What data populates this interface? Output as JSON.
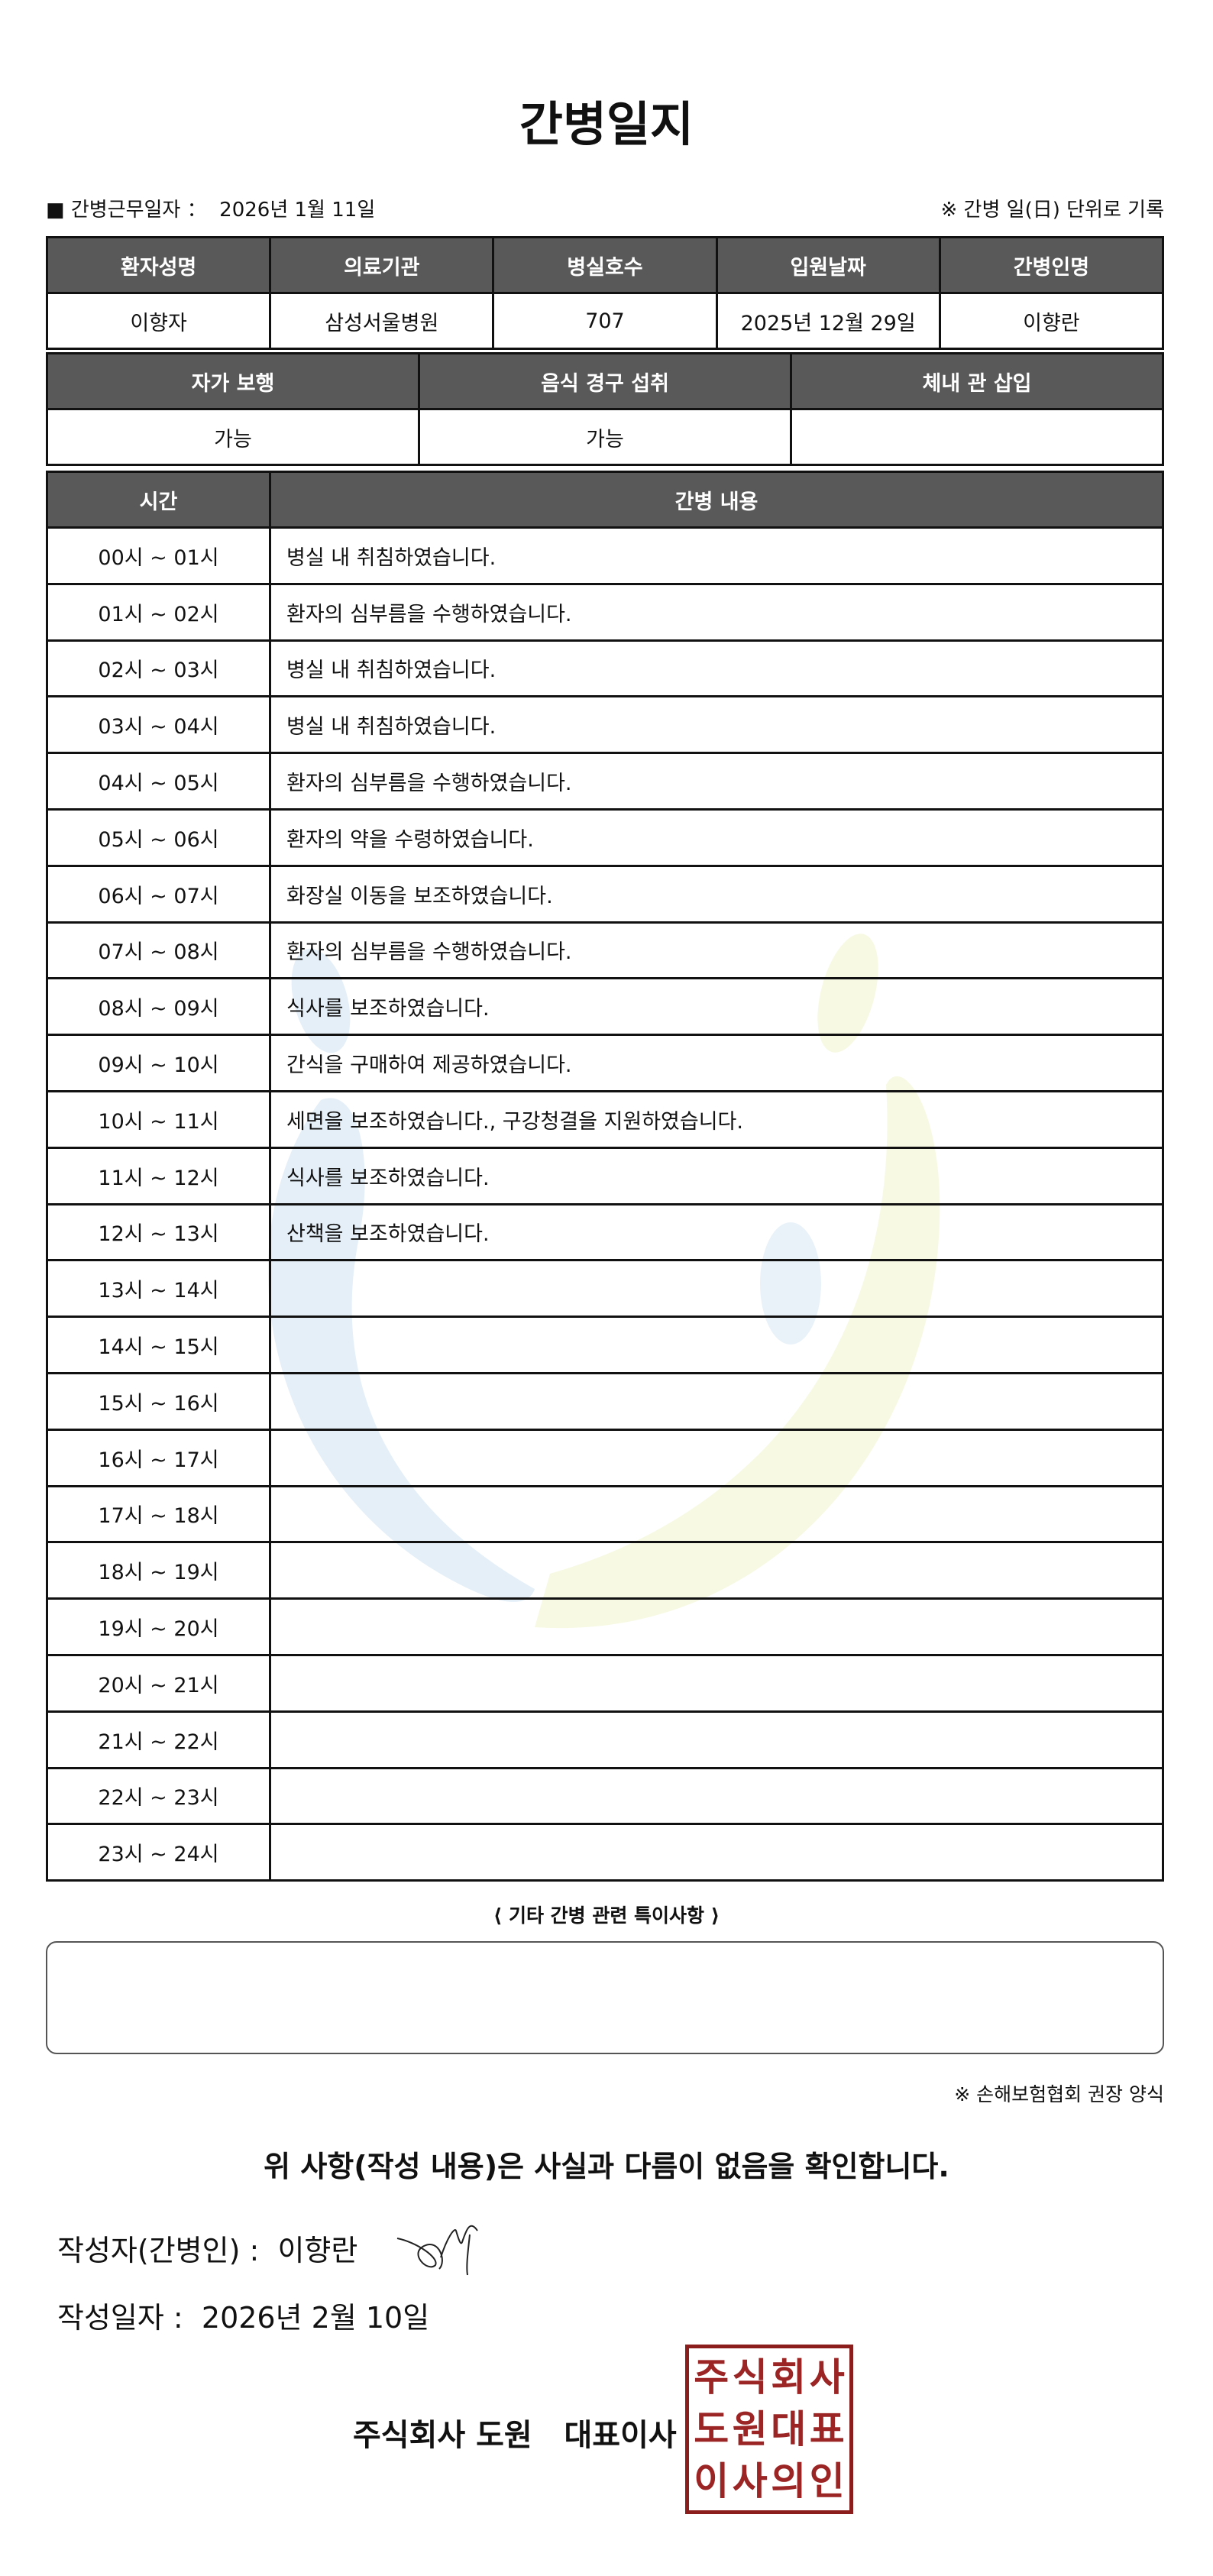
{
  "title": "간병일지",
  "info": {
    "work_date_label": "■ 간병근무일자 ：",
    "work_date": "2026년 1월 11일",
    "note": "※ 간병 일(日) 단위로 기록"
  },
  "patient_table": {
    "headers": [
      "환자성명",
      "의료기관",
      "병실호수",
      "입원날짜",
      "간병인명"
    ],
    "values": [
      "이향자",
      "삼성서울병원",
      "707",
      "2025년 12월 29일",
      "이향란"
    ]
  },
  "status_table": {
    "headers": [
      "자가 보행",
      "음식 경구 섭취",
      "체내 관 삽입"
    ],
    "values": [
      "가능",
      "가능",
      ""
    ]
  },
  "log_table": {
    "headers": [
      "시간",
      "간병 내용"
    ],
    "rows": [
      {
        "time": "00시 ~ 01시",
        "content": "병실 내 취침하였습니다."
      },
      {
        "time": "01시 ~ 02시",
        "content": "환자의 심부름을 수행하였습니다."
      },
      {
        "time": "02시 ~ 03시",
        "content": "병실 내 취침하였습니다."
      },
      {
        "time": "03시 ~ 04시",
        "content": "병실 내 취침하였습니다."
      },
      {
        "time": "04시 ~ 05시",
        "content": "환자의 심부름을 수행하였습니다."
      },
      {
        "time": "05시 ~ 06시",
        "content": "환자의 약을 수령하였습니다."
      },
      {
        "time": "06시 ~ 07시",
        "content": "화장실 이동을 보조하였습니다."
      },
      {
        "time": "07시 ~ 08시",
        "content": "환자의 심부름을 수행하였습니다."
      },
      {
        "time": "08시 ~ 09시",
        "content": "식사를 보조하였습니다."
      },
      {
        "time": "09시 ~ 10시",
        "content": "간식을 구매하여 제공하였습니다."
      },
      {
        "time": "10시 ~ 11시",
        "content": "세면을 보조하였습니다., 구강청결을 지원하였습니다."
      },
      {
        "time": "11시 ~ 12시",
        "content": "식사를 보조하였습니다."
      },
      {
        "time": "12시 ~ 13시",
        "content": "산책을 보조하였습니다."
      },
      {
        "time": "13시 ~ 14시",
        "content": ""
      },
      {
        "time": "14시 ~ 15시",
        "content": ""
      },
      {
        "time": "15시 ~ 16시",
        "content": ""
      },
      {
        "time": "16시 ~ 17시",
        "content": ""
      },
      {
        "time": "17시 ~ 18시",
        "content": ""
      },
      {
        "time": "18시 ~ 19시",
        "content": ""
      },
      {
        "time": "19시 ~ 20시",
        "content": ""
      },
      {
        "time": "20시 ~ 21시",
        "content": ""
      },
      {
        "time": "21시 ~ 22시",
        "content": ""
      },
      {
        "time": "22시 ~ 23시",
        "content": ""
      },
      {
        "time": "23시 ~ 24시",
        "content": ""
      }
    ]
  },
  "special_notes": {
    "title": "⟨ 기타 간병 관련 특이사항 ⟩",
    "value": ""
  },
  "form_note": "※ 손해보험협회 권장 양식",
  "confirmation": "위 사항(작성 내용)은 사실과 다름이 없음을 확인합니다.",
  "writer": {
    "label": "작성자(간병인) :",
    "name": "이향란"
  },
  "written_date": {
    "label": "작성일자 :",
    "value": "2026년 2월 10일"
  },
  "company": "주식회사 도원   대표이사",
  "stamp": {
    "text": [
      "주",
      "식",
      "회",
      "사",
      "도",
      "원",
      "대",
      "표",
      "이",
      "사",
      "의",
      "인"
    ],
    "color": "#9b2424"
  },
  "colors": {
    "header_bg": "#595959",
    "watermark_blue": "#dbe9f5",
    "watermark_yellow": "#f6f8e0"
  }
}
